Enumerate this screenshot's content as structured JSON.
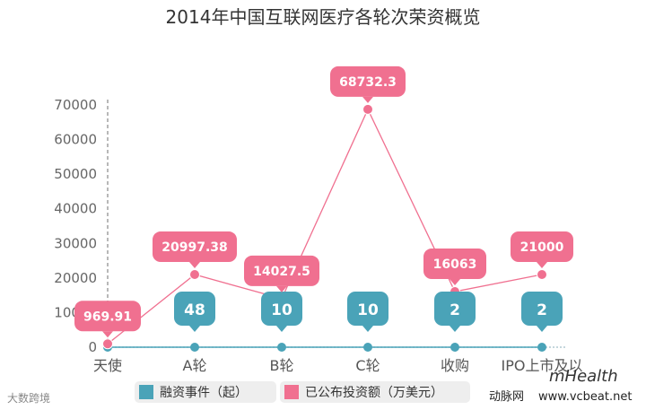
{
  "chart_data": {
    "type": "line",
    "title": "2014年中国互联网医疗各轮次荣资概览",
    "categories": [
      "天使",
      "A轮",
      "B轮",
      "C轮",
      "收购",
      "IPO上市及以"
    ],
    "ylim": [
      0,
      70000
    ],
    "yticks": [
      "0",
      "10000",
      "20000",
      "30000",
      "40000",
      "50000",
      "60000",
      "70000"
    ],
    "series": [
      {
        "name": "融资事件（起）",
        "color": "#4aa3b8",
        "values": [
          null,
          48,
          10,
          10,
          2,
          2
        ],
        "labels": [
          "",
          "48",
          "10",
          "10",
          "2",
          "2"
        ]
      },
      {
        "name": "已公布投资额（万美元）",
        "color": "#f07090",
        "values": [
          969.91,
          20997.38,
          14027.5,
          68732.3,
          16063,
          21000
        ],
        "labels": [
          "969.91",
          "20997.38",
          "14027.5",
          "68732.3",
          "16063",
          "21000"
        ]
      }
    ],
    "grid": false,
    "legend_position": "bottom"
  },
  "watermark": {
    "left": "大数跨境",
    "brand": "mHealth",
    "site_cn": "动脉网",
    "site_url": "www.vcbeat.net"
  }
}
